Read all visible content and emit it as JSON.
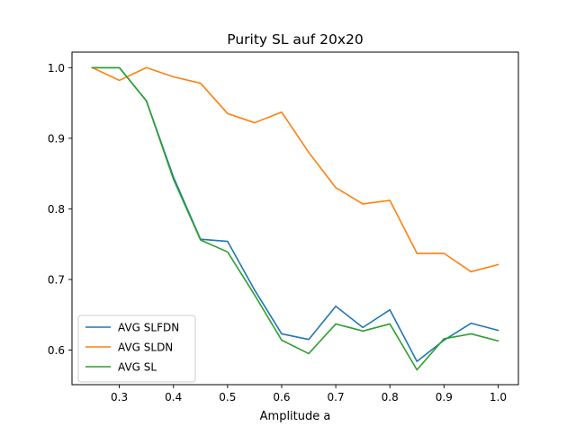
{
  "chart_data": {
    "type": "line",
    "title": "Purity SL auf 20x20",
    "xlabel": "Amplitude a",
    "ylabel": "",
    "xlim": [
      0.2125,
      1.0375
    ],
    "ylim": [
      0.551,
      1.022
    ],
    "xticks": [
      0.3,
      0.4,
      0.5,
      0.6,
      0.7,
      0.8,
      0.9,
      1.0
    ],
    "xtick_labels": [
      "0.3",
      "0.4",
      "0.5",
      "0.6",
      "0.7",
      "0.8",
      "0.9",
      "1.0"
    ],
    "yticks": [
      0.6,
      0.7,
      0.8,
      0.9,
      1.0
    ],
    "ytick_labels": [
      "0.6",
      "0.7",
      "0.8",
      "0.9",
      "1.0"
    ],
    "grid": false,
    "legend_position": "lower-left",
    "x": [
      0.25,
      0.3,
      0.35,
      0.4,
      0.45,
      0.5,
      0.55,
      0.6,
      0.65,
      0.7,
      0.75,
      0.8,
      0.85,
      0.9,
      0.95,
      1.0
    ],
    "series": [
      {
        "name": "AVG SLFDN",
        "color": "#1f77b4",
        "values": [
          1.0,
          1.0,
          0.953,
          0.845,
          0.757,
          0.754,
          0.685,
          0.623,
          0.615,
          0.662,
          0.632,
          0.657,
          0.584,
          0.614,
          0.638,
          0.628
        ]
      },
      {
        "name": "AVG SLDN",
        "color": "#ff7f0e",
        "values": [
          1.0,
          0.982,
          1.0,
          0.987,
          0.978,
          0.935,
          0.922,
          0.937,
          0.88,
          0.83,
          0.807,
          0.812,
          0.737,
          0.737,
          0.711,
          0.721
        ]
      },
      {
        "name": "AVG SL",
        "color": "#2ca02c",
        "values": [
          1.0,
          1.0,
          0.953,
          0.842,
          0.756,
          0.739,
          0.678,
          0.614,
          0.595,
          0.637,
          0.627,
          0.637,
          0.572,
          0.616,
          0.623,
          0.613
        ]
      }
    ]
  }
}
